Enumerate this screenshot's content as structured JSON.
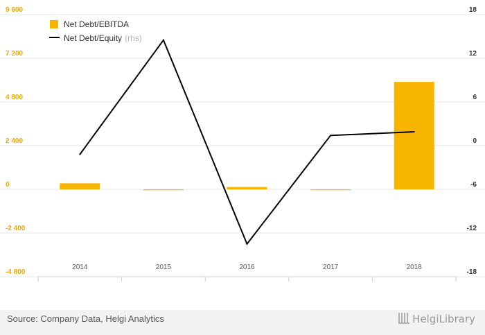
{
  "chart_data": {
    "type": "bar",
    "categories": [
      "2014",
      "2015",
      "2016",
      "2017",
      "2018"
    ],
    "series": [
      {
        "name": "Net Debt/EBITDA",
        "type": "bar",
        "axis": "left",
        "values": [
          330,
          -20,
          130,
          -40,
          5900
        ],
        "color": "#f7b500"
      },
      {
        "name": "Net Debt/Equity",
        "name_suffix": "(rhs)",
        "type": "line",
        "axis": "right",
        "values": [
          -1.2,
          14.5,
          -13.5,
          1.4,
          1.9
        ],
        "color": "#000000"
      }
    ],
    "y_left": {
      "ylim": [
        -4800,
        9600
      ],
      "ticks": [
        9600,
        7200,
        4800,
        2400,
        0,
        -2400,
        -4800
      ],
      "tick_labels": [
        "9 600",
        "7 200",
        "4 800",
        "2 400",
        "0",
        "-2 400",
        "-4 800"
      ],
      "color": "#f2a900"
    },
    "y_right": {
      "ylim": [
        -18,
        18
      ],
      "ticks": [
        18,
        12,
        6,
        0,
        -6,
        -12,
        -18
      ],
      "tick_labels": [
        "18",
        "12",
        "6",
        "0",
        "-6",
        "-12",
        "-18"
      ]
    },
    "grid": true,
    "legend": "top-left"
  },
  "footer": {
    "source": "Source: Company Data, Helgi Analytics",
    "brand": "HelgiLibrary"
  }
}
